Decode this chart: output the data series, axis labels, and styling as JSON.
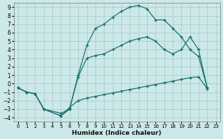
{
  "xlabel": "Humidex (Indice chaleur)",
  "background_color": "#cce8e8",
  "grid_color": "#aacccc",
  "line_color": "#1a7070",
  "xlim": [
    -0.5,
    23.5
  ],
  "ylim": [
    -4.5,
    9.5
  ],
  "xticks": [
    0,
    1,
    2,
    3,
    4,
    5,
    6,
    7,
    8,
    9,
    10,
    11,
    12,
    13,
    14,
    15,
    16,
    17,
    18,
    19,
    20,
    21,
    22,
    23
  ],
  "yticks": [
    -4,
    -3,
    -2,
    -1,
    0,
    1,
    2,
    3,
    4,
    5,
    6,
    7,
    8,
    9
  ],
  "line_upper_x": [
    0,
    1,
    2,
    3,
    5,
    6,
    7,
    8,
    9,
    10,
    11,
    12,
    13,
    14,
    15,
    16,
    17,
    18,
    19,
    20,
    21,
    22
  ],
  "line_upper_y": [
    -0.5,
    -1.0,
    -1.2,
    -3.0,
    -3.8,
    -3.0,
    1.0,
    4.5,
    6.5,
    7.0,
    7.8,
    8.5,
    9.0,
    9.2,
    8.8,
    7.5,
    7.5,
    6.5,
    5.5,
    4.0,
    3.2,
    -0.5
  ],
  "line_mid_x": [
    0,
    1,
    2,
    3,
    5,
    6,
    7,
    8,
    9,
    10,
    11,
    12,
    13,
    14,
    15,
    16,
    17,
    18,
    19,
    20,
    21,
    22
  ],
  "line_mid_y": [
    -0.5,
    -1.0,
    -1.2,
    -3.0,
    -3.5,
    -3.0,
    0.8,
    3.0,
    3.3,
    3.5,
    4.0,
    4.5,
    5.0,
    5.3,
    5.5,
    5.0,
    4.0,
    3.5,
    4.0,
    5.5,
    4.0,
    -0.5
  ],
  "line_low_x": [
    0,
    1,
    2,
    3,
    5,
    6,
    7,
    8,
    9,
    10,
    11,
    12,
    13,
    14,
    15,
    16,
    17,
    18,
    19,
    20,
    21,
    22
  ],
  "line_low_y": [
    -0.5,
    -1.0,
    -1.2,
    -3.0,
    -3.8,
    -2.8,
    -2.0,
    -1.7,
    -1.5,
    -1.3,
    -1.1,
    -0.9,
    -0.7,
    -0.5,
    -0.3,
    -0.1,
    0.1,
    0.3,
    0.5,
    0.7,
    0.8,
    -0.6
  ]
}
